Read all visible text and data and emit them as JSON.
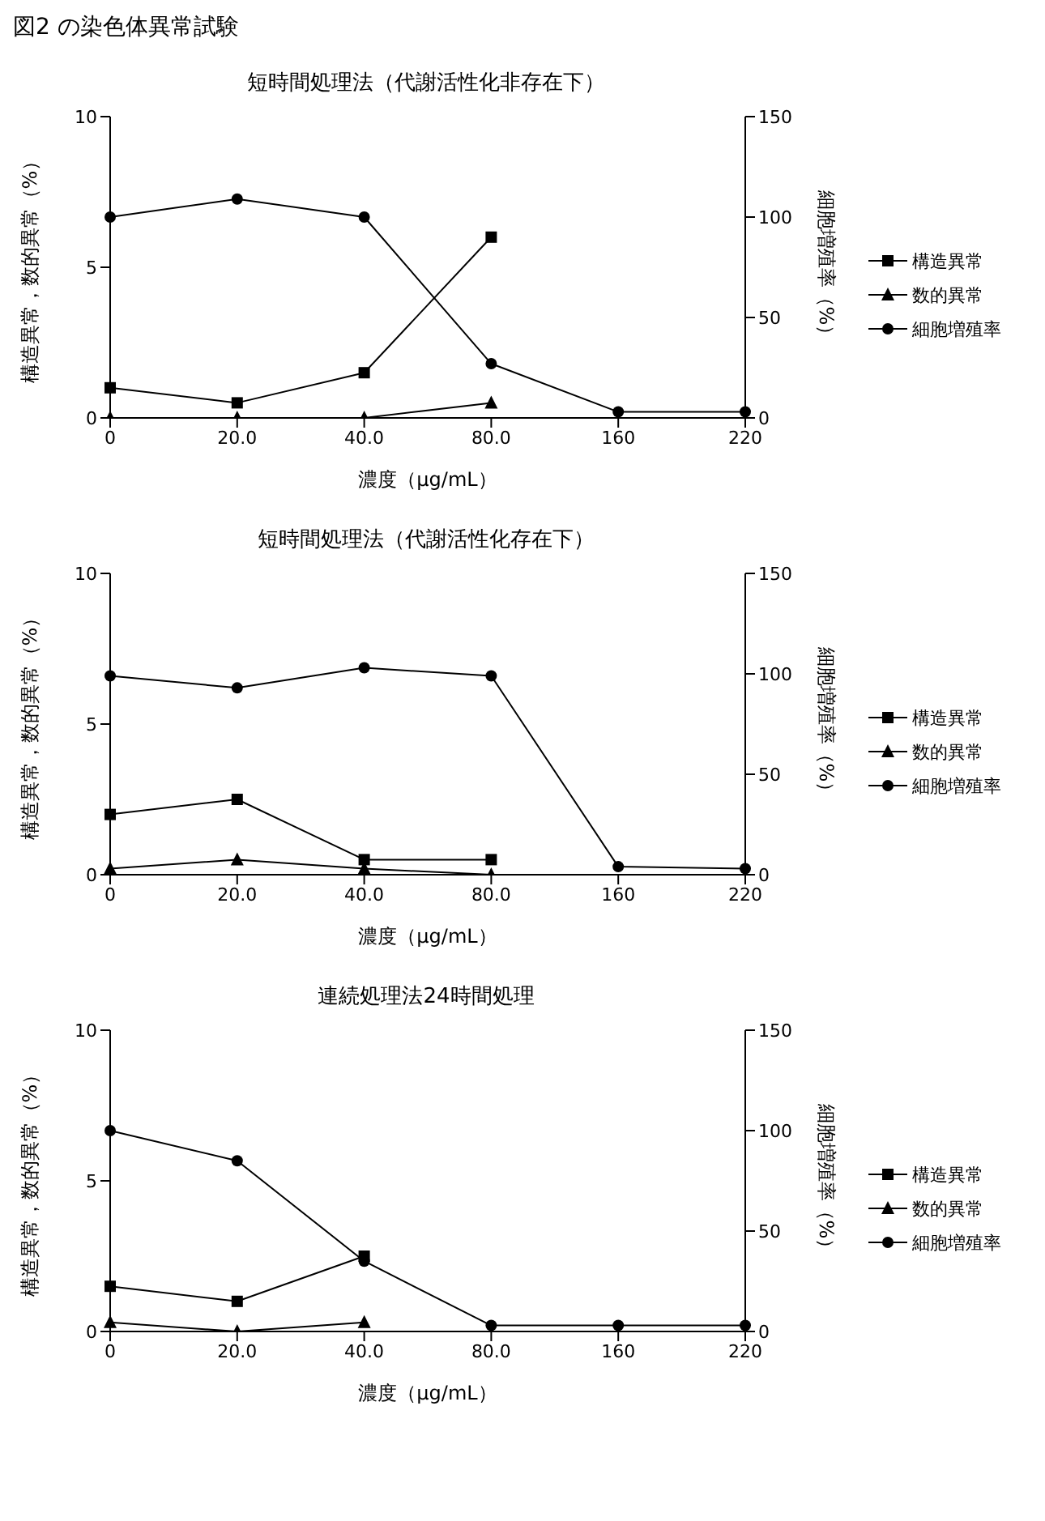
{
  "chart_data": [
    {
      "type": "line",
      "title": "短時間処理法（代謝活性化非存在下）",
      "annotations": [
        "図2 の染色体異常試験"
      ],
      "categories": [
        "0",
        "20.0",
        "40.0",
        "80.0",
        "160",
        "220"
      ],
      "xlabel": "濃度（μg/mL）",
      "ylabel": "構造異常，数的異常（%）",
      "y2label": "細胞増殖率（%）",
      "ylim": [
        0,
        10
      ],
      "yticks": [
        0,
        5,
        10
      ],
      "y2lim": [
        0,
        150
      ],
      "y2ticks": [
        0,
        50,
        100,
        150
      ],
      "legend": "right",
      "grid": false,
      "line_style": "solid",
      "series": [
        {
          "name": "構造異常",
          "color": "#000000",
          "marker": "square",
          "values": [
            1.0,
            0.5,
            1.5,
            6.0,
            null,
            null
          ]
        },
        {
          "name": "数的異常",
          "color": "#000000",
          "marker": "triangle",
          "values": [
            0,
            0,
            0,
            0.5,
            null,
            null
          ]
        },
        {
          "name": "細胞増殖率",
          "color": "#000000",
          "marker": "circle",
          "axis": "y2",
          "values": [
            100,
            109,
            100,
            27,
            3,
            3
          ]
        }
      ]
    },
    {
      "type": "line",
      "title": "短時間処理法（代謝活性化存在下）",
      "categories": [
        "0",
        "20.0",
        "40.0",
        "80.0",
        "160",
        "220"
      ],
      "xlabel": "濃度（μg/mL）",
      "ylabel": "構造異常，数的異常（%）",
      "y2label": "細胞増殖率（%）",
      "ylim": [
        0,
        10
      ],
      "yticks": [
        0,
        5,
        10
      ],
      "y2lim": [
        0,
        150
      ],
      "y2ticks": [
        0,
        50,
        100,
        150
      ],
      "legend": "right",
      "grid": false,
      "line_style": "solid",
      "series": [
        {
          "name": "構造異常",
          "color": "#000000",
          "marker": "square",
          "values": [
            2.0,
            2.5,
            0.5,
            0.5,
            null,
            null
          ]
        },
        {
          "name": "数的異常",
          "color": "#000000",
          "marker": "triangle",
          "values": [
            0.2,
            0.5,
            0.2,
            0,
            null,
            null
          ]
        },
        {
          "name": "細胞増殖率",
          "color": "#000000",
          "marker": "circle",
          "axis": "y2",
          "values": [
            99,
            93,
            103,
            99,
            4,
            3
          ]
        }
      ]
    },
    {
      "type": "line",
      "title": "連続処理法24時間処理",
      "categories": [
        "0",
        "20.0",
        "40.0",
        "80.0",
        "160",
        "220"
      ],
      "xlabel": "濃度（μg/mL）",
      "ylabel": "構造異常，数的異常（%）",
      "y2label": "細胞増殖率（%）",
      "ylim": [
        0,
        10
      ],
      "yticks": [
        0,
        5,
        10
      ],
      "y2lim": [
        0,
        150
      ],
      "y2ticks": [
        0,
        50,
        100,
        150
      ],
      "legend": "right",
      "grid": false,
      "line_style": "solid",
      "series": [
        {
          "name": "構造異常",
          "color": "#000000",
          "marker": "square",
          "values": [
            1.5,
            1.0,
            2.5,
            null,
            null,
            null
          ]
        },
        {
          "name": "数的異常",
          "color": "#000000",
          "marker": "triangle",
          "values": [
            0.3,
            0,
            0.3,
            null,
            null,
            null
          ]
        },
        {
          "name": "細胞増殖率",
          "color": "#000000",
          "marker": "circle",
          "axis": "y2",
          "values": [
            100,
            85,
            35,
            3,
            3,
            3
          ]
        }
      ]
    }
  ]
}
